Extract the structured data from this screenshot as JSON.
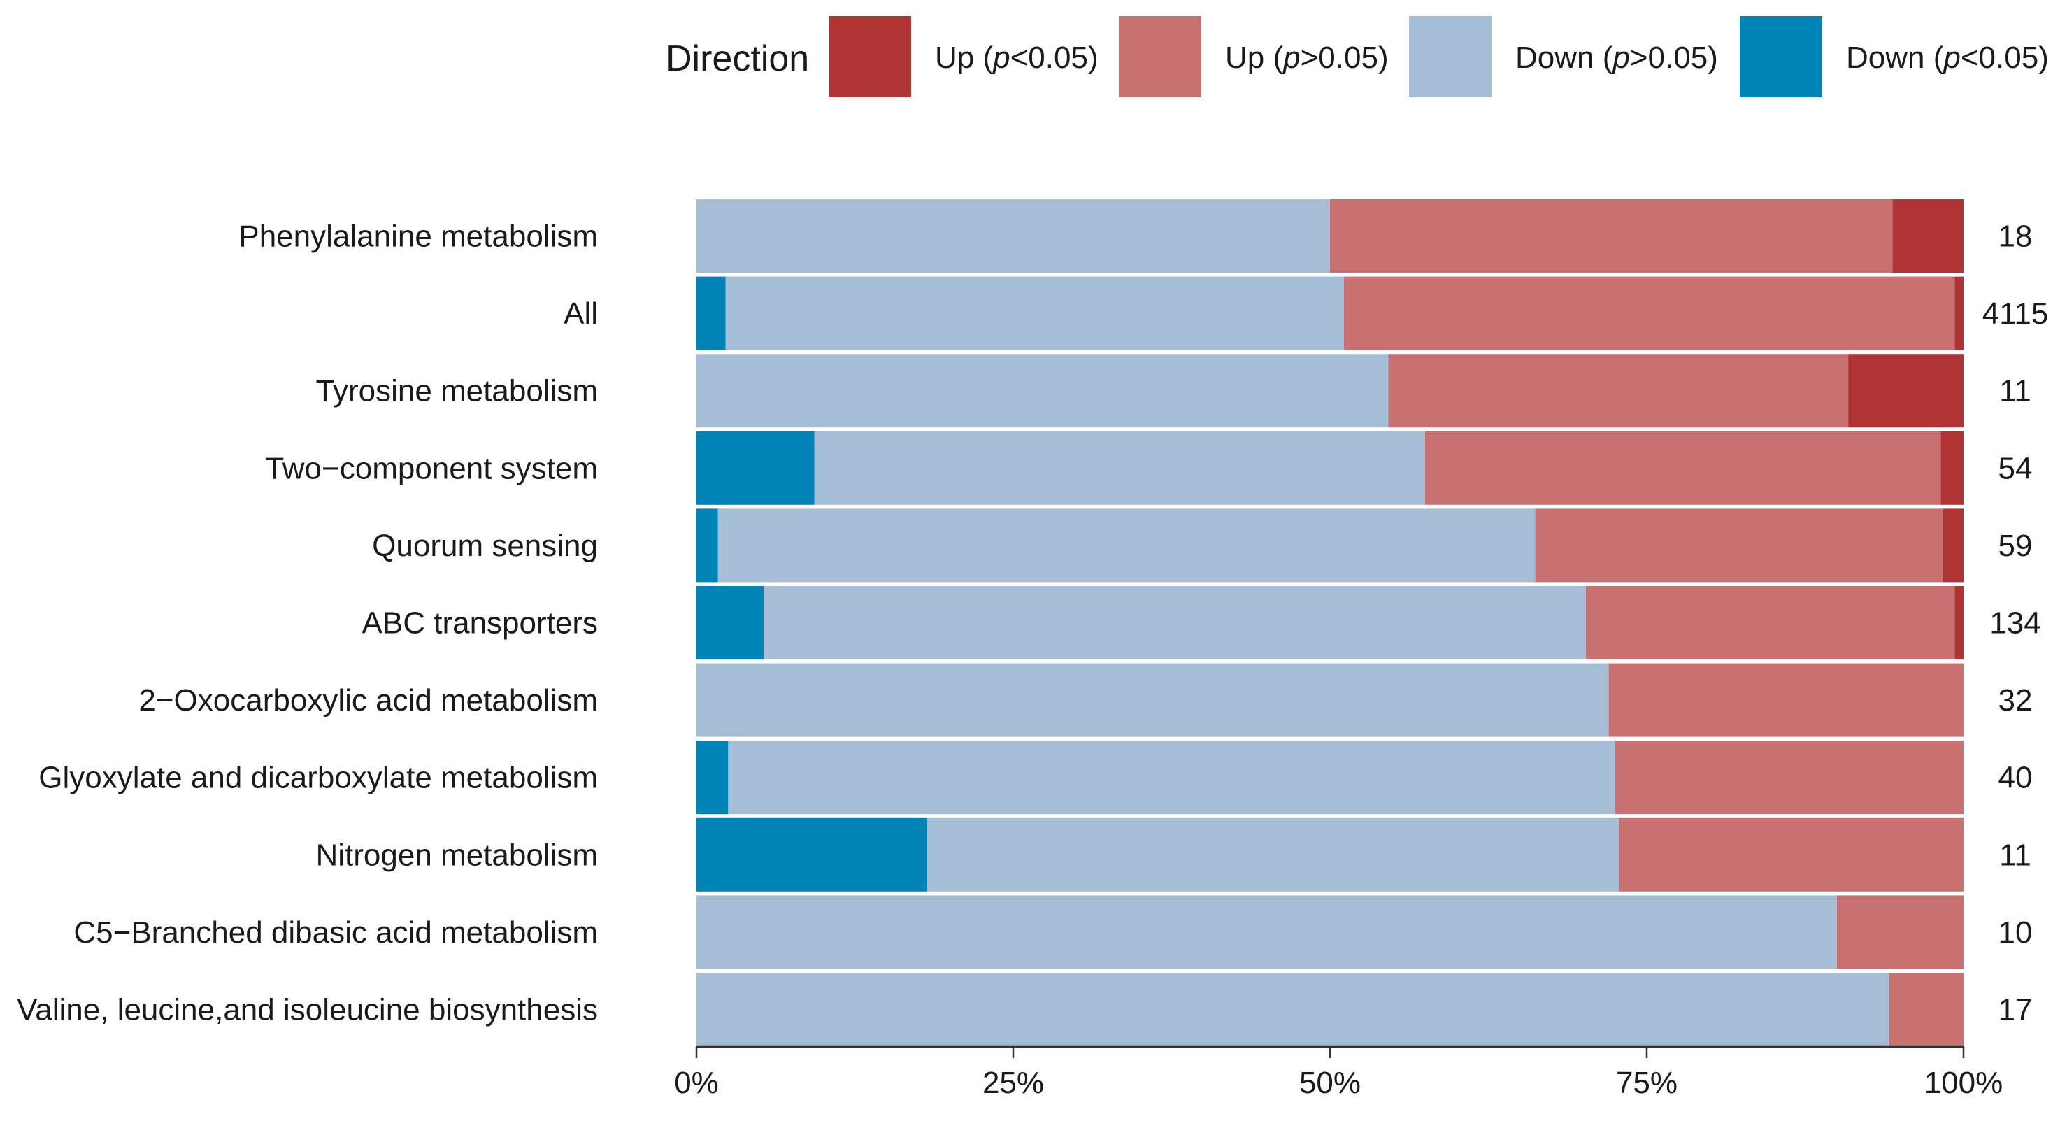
{
  "chart_data": {
    "type": "bar",
    "orientation": "horizontal",
    "stacked": true,
    "normalized": true,
    "categories": [
      "Phenylalanine metabolism",
      "All",
      "Tyrosine metabolism",
      "Two−component system",
      "Quorum sensing",
      "ABC transporters",
      "2−Oxocarboxylic acid metabolism",
      "Glyoxylate and dicarboxylate metabolism",
      "Nitrogen metabolism",
      "C5−Branched dibasic acid metabolism",
      "Valine, leucine,and isoleucine biosynthesis"
    ],
    "counts": [
      "18",
      "4115",
      "11",
      "54",
      "59",
      "134",
      "32",
      "40",
      "11",
      "10",
      "17"
    ],
    "series": [
      {
        "key": "down_sig",
        "name": "Down (p<0.05)",
        "color": "#0084b8",
        "values": [
          0,
          2.3,
          0,
          9.3,
          1.7,
          5.3,
          0,
          2.5,
          18.2,
          0,
          0
        ]
      },
      {
        "key": "down_ns",
        "name": "Down (p>0.05)",
        "color": "#a6bdd6",
        "values": [
          50.0,
          48.8,
          54.6,
          48.2,
          64.5,
          64.9,
          72.0,
          70.0,
          54.6,
          90.0,
          94.1
        ]
      },
      {
        "key": "up_ns",
        "name": "Up (p>0.05)",
        "color": "#c97070",
        "values": [
          44.4,
          48.2,
          36.3,
          40.7,
          32.2,
          29.1,
          28.0,
          27.5,
          27.2,
          10.0,
          5.9
        ]
      },
      {
        "key": "up_sig",
        "name": "Up (p<0.05)",
        "color": "#b03434",
        "values": [
          5.6,
          0.7,
          9.1,
          1.8,
          1.6,
          0.7,
          0,
          0,
          0,
          0,
          0
        ]
      }
    ],
    "legend": {
      "title": "Direction",
      "position": "top",
      "entries": [
        {
          "series": "up_sig",
          "prefix": "Up (",
          "italic": "p",
          "suffix": "<0.05)"
        },
        {
          "series": "up_ns",
          "prefix": "Up (",
          "italic": "p",
          "suffix": ">0.05)"
        },
        {
          "series": "down_ns",
          "prefix": "Down (",
          "italic": "p",
          "suffix": ">0.05)"
        },
        {
          "series": "down_sig",
          "prefix": "Down (",
          "italic": "p",
          "suffix": "<0.05)"
        }
      ]
    },
    "x_ticks": [
      "0%",
      "25%",
      "50%",
      "75%",
      "100%"
    ],
    "xlim": [
      0,
      100
    ],
    "xlabel": "",
    "ylabel": "",
    "grid": false
  }
}
